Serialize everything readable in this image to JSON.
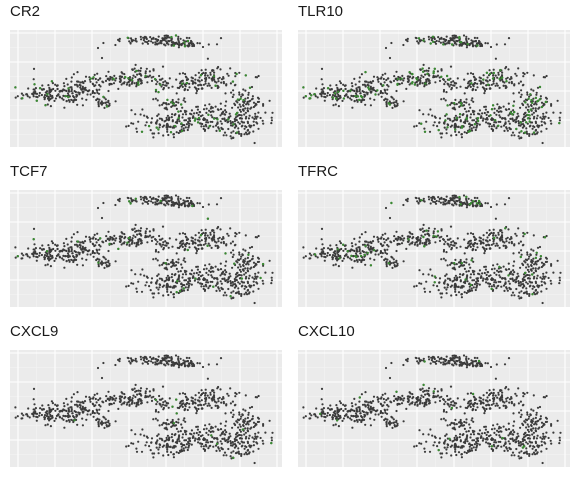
{
  "chart_data": [
    {
      "type": "scatter",
      "gene": "CR2",
      "title": "CR2",
      "xlabel": "",
      "ylabel": "",
      "grid": true,
      "axis_ticks": false,
      "expressing_fraction": 0.07,
      "colors": {
        "base": "#3b3b3b",
        "expressed": "#3a8a32"
      }
    },
    {
      "type": "scatter",
      "gene": "TLR10",
      "title": "TLR10",
      "xlabel": "",
      "ylabel": "",
      "grid": true,
      "axis_ticks": false,
      "expressing_fraction": 0.12,
      "colors": {
        "base": "#3b3b3b",
        "expressed": "#3a8a32"
      }
    },
    {
      "type": "scatter",
      "gene": "TCF7",
      "title": "TCF7",
      "xlabel": "",
      "ylabel": "",
      "grid": true,
      "axis_ticks": false,
      "expressing_fraction": 0.03,
      "colors": {
        "base": "#3b3b3b",
        "expressed": "#3a8a32"
      }
    },
    {
      "type": "scatter",
      "gene": "TFRC",
      "title": "TFRC",
      "xlabel": "",
      "ylabel": "",
      "grid": true,
      "axis_ticks": false,
      "expressing_fraction": 0.05,
      "colors": {
        "base": "#3b3b3b",
        "expressed": "#3a8a32"
      }
    },
    {
      "type": "scatter",
      "gene": "CXCL9",
      "title": "CXCL9",
      "xlabel": "",
      "ylabel": "",
      "grid": true,
      "axis_ticks": false,
      "expressing_fraction": 0.01,
      "colors": {
        "base": "#3b3b3b",
        "expressed": "#3a8a32"
      }
    },
    {
      "type": "scatter",
      "gene": "CXCL10",
      "title": "CXCL10",
      "xlabel": "",
      "ylabel": "",
      "grid": true,
      "axis_ticks": false,
      "expressing_fraction": 0.015,
      "colors": {
        "base": "#3b3b3b",
        "expressed": "#3a8a32"
      }
    }
  ]
}
